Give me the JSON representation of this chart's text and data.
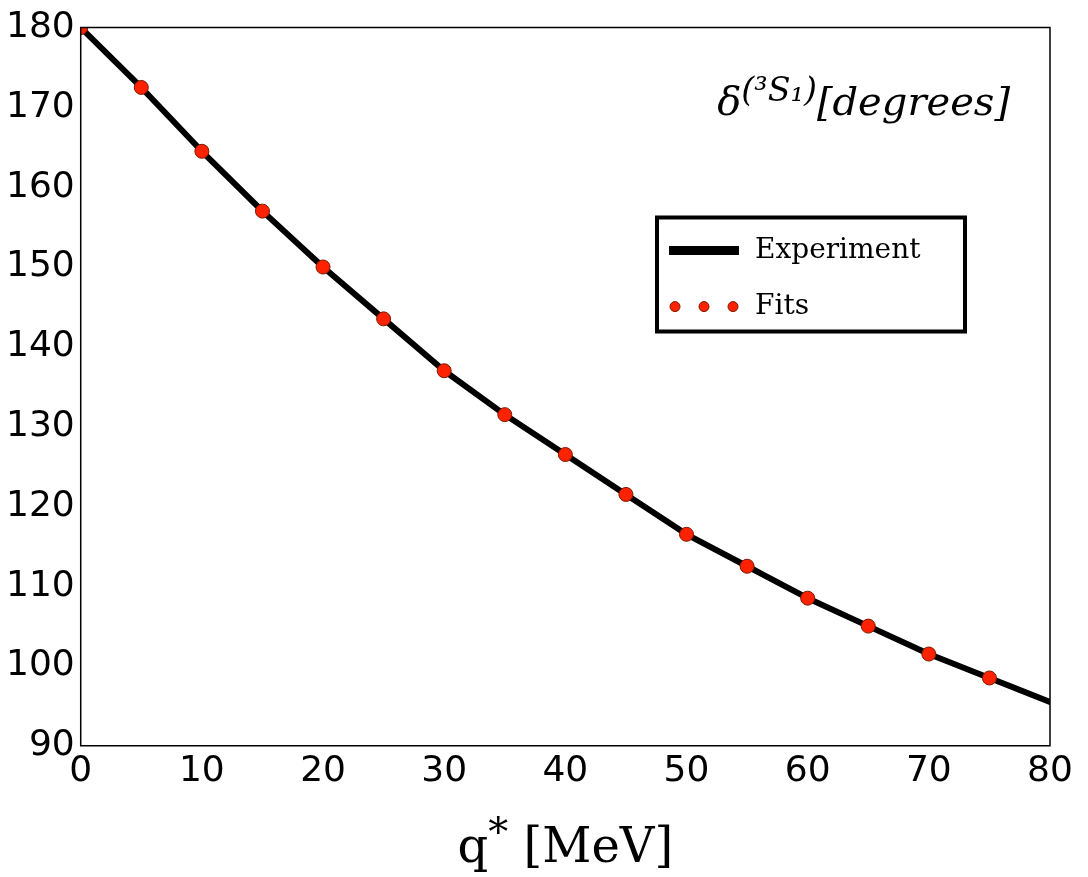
{
  "chart_data": {
    "type": "line",
    "xlabel": "q$^{*}$ [MeV]",
    "annotations": [
      "δ$^{(³S₁)}$[degrees]"
    ],
    "xlim": [
      0,
      80
    ],
    "xticks": [
      0,
      10,
      20,
      30,
      40,
      50,
      60,
      70,
      80
    ],
    "ylim": [
      90,
      180
    ],
    "yticks": [
      90,
      100,
      110,
      120,
      130,
      140,
      150,
      160,
      170,
      180
    ],
    "grid": false,
    "legend": "top right",
    "series": [
      {
        "name": "Experiment",
        "color": "#000000",
        "marker": "none",
        "line_style": "solid",
        "x": [
          0,
          5,
          10,
          15,
          20,
          25,
          30,
          35,
          40,
          45,
          50,
          55,
          60,
          65,
          70,
          75,
          80
        ],
        "values": [
          180,
          172.5,
          164.5,
          157,
          150,
          143.5,
          137,
          131.5,
          126.5,
          121.5,
          116.5,
          112.5,
          108.5,
          105,
          101.5,
          98.5,
          95.5
        ]
      },
      {
        "name": "Fits",
        "type": "scatter",
        "color": "#ff2200",
        "marker": "circle",
        "x": [
          0,
          5,
          10,
          15,
          20,
          25,
          30,
          35,
          40,
          45,
          50,
          55,
          60,
          65,
          70,
          75
        ],
        "values": [
          180,
          172.5,
          164.5,
          157,
          150,
          143.5,
          137,
          131.5,
          126.5,
          121.5,
          116.5,
          112.5,
          108.5,
          105,
          101.5,
          98.5
        ]
      }
    ]
  }
}
